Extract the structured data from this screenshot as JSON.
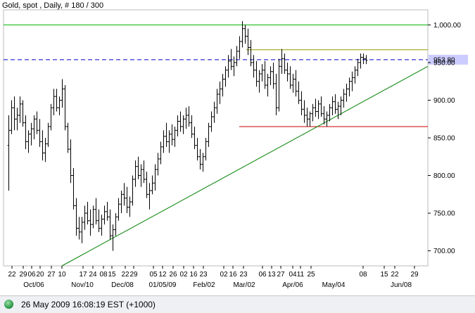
{
  "title": "Gold, spot , Daily, # 180 / 300",
  "status": {
    "text": "26 May 2009 16:08:19  EST (+1000)",
    "dot_color": "#2f9a4b"
  },
  "colors": {
    "bars": "#000000",
    "green_line": "#00b400",
    "blue_dash": "#0000cc",
    "olive_line": "#999900",
    "red_line": "#cc0000",
    "trend_line": "#008000",
    "price_label_bg": "#ccccff",
    "grid": "#dddddd"
  },
  "chart_data": {
    "type": "ohlc",
    "title": "Gold, spot , Daily, # 180 / 300",
    "ylim": [
      680,
      1020
    ],
    "y_ticks": [
      "700.00",
      "750.00",
      "800.00",
      "850.00",
      "900.00",
      "950.00",
      "1,000.00"
    ],
    "x_day_labels": [
      "22",
      "29",
      "06",
      "20",
      "27",
      "10",
      "17",
      "24",
      "08",
      "15",
      "22",
      "29",
      "05",
      "12",
      "26",
      "02",
      "16",
      "23",
      "02",
      "16",
      "23",
      "06",
      "13",
      "27",
      "04",
      "11",
      "25",
      "08",
      "15",
      "22",
      "29"
    ],
    "x_month_labels": [
      "Oct/06",
      "Nov/10",
      "Dec/08",
      "01/05/09",
      "Feb/02",
      "Mar/02",
      "Apr/06",
      "May/04",
      "Jun/08"
    ],
    "horizontal_lines": [
      {
        "value": 1000,
        "color": "#00b400",
        "style": "solid"
      },
      {
        "value": 953.8,
        "color": "#0000cc",
        "style": "dashed",
        "label": "953.80"
      },
      {
        "value": 967,
        "color": "#999900",
        "style": "solid"
      },
      {
        "value": 865,
        "color": "#cc0000",
        "style": "solid"
      }
    ],
    "trend_line": {
      "from": {
        "bar": 0,
        "price": 680
      },
      "to": {
        "bar": 150,
        "price": 945
      }
    },
    "bars": [
      {
        "o": 840,
        "h": 880,
        "l": 780,
        "c": 860
      },
      {
        "o": 860,
        "h": 900,
        "l": 855,
        "c": 890
      },
      {
        "o": 890,
        "h": 905,
        "l": 860,
        "c": 875
      },
      {
        "o": 875,
        "h": 890,
        "l": 860,
        "c": 880
      },
      {
        "o": 880,
        "h": 905,
        "l": 870,
        "c": 895
      },
      {
        "o": 895,
        "h": 900,
        "l": 865,
        "c": 870
      },
      {
        "o": 870,
        "h": 880,
        "l": 835,
        "c": 845
      },
      {
        "o": 845,
        "h": 860,
        "l": 830,
        "c": 855
      },
      {
        "o": 855,
        "h": 870,
        "l": 840,
        "c": 862
      },
      {
        "o": 862,
        "h": 880,
        "l": 848,
        "c": 875
      },
      {
        "o": 875,
        "h": 885,
        "l": 855,
        "c": 860
      },
      {
        "o": 860,
        "h": 875,
        "l": 838,
        "c": 845
      },
      {
        "o": 845,
        "h": 860,
        "l": 820,
        "c": 830
      },
      {
        "o": 830,
        "h": 850,
        "l": 818,
        "c": 842
      },
      {
        "o": 842,
        "h": 870,
        "l": 838,
        "c": 865
      },
      {
        "o": 865,
        "h": 895,
        "l": 860,
        "c": 890
      },
      {
        "o": 890,
        "h": 915,
        "l": 880,
        "c": 905
      },
      {
        "o": 905,
        "h": 915,
        "l": 885,
        "c": 890
      },
      {
        "o": 890,
        "h": 905,
        "l": 880,
        "c": 900
      },
      {
        "o": 900,
        "h": 928,
        "l": 890,
        "c": 915
      },
      {
        "o": 915,
        "h": 920,
        "l": 860,
        "c": 865
      },
      {
        "o": 865,
        "h": 870,
        "l": 830,
        "c": 835
      },
      {
        "o": 835,
        "h": 848,
        "l": 790,
        "c": 800
      },
      {
        "o": 800,
        "h": 810,
        "l": 755,
        "c": 760
      },
      {
        "o": 760,
        "h": 770,
        "l": 720,
        "c": 730
      },
      {
        "o": 730,
        "h": 745,
        "l": 715,
        "c": 725
      },
      {
        "o": 725,
        "h": 745,
        "l": 710,
        "c": 738
      },
      {
        "o": 738,
        "h": 760,
        "l": 728,
        "c": 750
      },
      {
        "o": 750,
        "h": 765,
        "l": 735,
        "c": 740
      },
      {
        "o": 740,
        "h": 755,
        "l": 720,
        "c": 735
      },
      {
        "o": 735,
        "h": 760,
        "l": 730,
        "c": 755
      },
      {
        "o": 755,
        "h": 770,
        "l": 735,
        "c": 740
      },
      {
        "o": 740,
        "h": 755,
        "l": 725,
        "c": 730
      },
      {
        "o": 730,
        "h": 748,
        "l": 720,
        "c": 742
      },
      {
        "o": 742,
        "h": 760,
        "l": 735,
        "c": 752
      },
      {
        "o": 752,
        "h": 765,
        "l": 740,
        "c": 745
      },
      {
        "o": 745,
        "h": 755,
        "l": 715,
        "c": 720
      },
      {
        "o": 720,
        "h": 735,
        "l": 700,
        "c": 728
      },
      {
        "o": 728,
        "h": 750,
        "l": 720,
        "c": 745
      },
      {
        "o": 745,
        "h": 770,
        "l": 740,
        "c": 762
      },
      {
        "o": 762,
        "h": 780,
        "l": 750,
        "c": 775
      },
      {
        "o": 775,
        "h": 790,
        "l": 760,
        "c": 770
      },
      {
        "o": 770,
        "h": 785,
        "l": 750,
        "c": 758
      },
      {
        "o": 758,
        "h": 772,
        "l": 745,
        "c": 765
      },
      {
        "o": 765,
        "h": 800,
        "l": 760,
        "c": 795
      },
      {
        "o": 795,
        "h": 820,
        "l": 785,
        "c": 812
      },
      {
        "o": 812,
        "h": 825,
        "l": 795,
        "c": 800
      },
      {
        "o": 800,
        "h": 815,
        "l": 785,
        "c": 808
      },
      {
        "o": 808,
        "h": 820,
        "l": 790,
        "c": 795
      },
      {
        "o": 795,
        "h": 805,
        "l": 770,
        "c": 775
      },
      {
        "o": 775,
        "h": 790,
        "l": 755,
        "c": 780
      },
      {
        "o": 780,
        "h": 800,
        "l": 775,
        "c": 790
      },
      {
        "o": 790,
        "h": 815,
        "l": 780,
        "c": 808
      },
      {
        "o": 808,
        "h": 830,
        "l": 800,
        "c": 822
      },
      {
        "o": 822,
        "h": 845,
        "l": 815,
        "c": 838
      },
      {
        "o": 838,
        "h": 860,
        "l": 830,
        "c": 852
      },
      {
        "o": 852,
        "h": 870,
        "l": 838,
        "c": 845
      },
      {
        "o": 845,
        "h": 860,
        "l": 830,
        "c": 855
      },
      {
        "o": 855,
        "h": 868,
        "l": 840,
        "c": 848
      },
      {
        "o": 848,
        "h": 865,
        "l": 838,
        "c": 860
      },
      {
        "o": 860,
        "h": 880,
        "l": 852,
        "c": 872
      },
      {
        "o": 872,
        "h": 885,
        "l": 858,
        "c": 865
      },
      {
        "o": 865,
        "h": 880,
        "l": 855,
        "c": 875
      },
      {
        "o": 875,
        "h": 890,
        "l": 862,
        "c": 880
      },
      {
        "o": 880,
        "h": 892,
        "l": 865,
        "c": 870
      },
      {
        "o": 870,
        "h": 880,
        "l": 850,
        "c": 855
      },
      {
        "o": 855,
        "h": 865,
        "l": 835,
        "c": 840
      },
      {
        "o": 840,
        "h": 850,
        "l": 820,
        "c": 825
      },
      {
        "o": 825,
        "h": 835,
        "l": 808,
        "c": 815
      },
      {
        "o": 815,
        "h": 830,
        "l": 805,
        "c": 825
      },
      {
        "o": 825,
        "h": 850,
        "l": 820,
        "c": 845
      },
      {
        "o": 845,
        "h": 870,
        "l": 838,
        "c": 865
      },
      {
        "o": 865,
        "h": 885,
        "l": 858,
        "c": 878
      },
      {
        "o": 878,
        "h": 898,
        "l": 870,
        "c": 890
      },
      {
        "o": 890,
        "h": 915,
        "l": 882,
        "c": 908
      },
      {
        "o": 908,
        "h": 925,
        "l": 895,
        "c": 915
      },
      {
        "o": 915,
        "h": 935,
        "l": 905,
        "c": 928
      },
      {
        "o": 928,
        "h": 945,
        "l": 918,
        "c": 940
      },
      {
        "o": 940,
        "h": 960,
        "l": 930,
        "c": 952
      },
      {
        "o": 952,
        "h": 968,
        "l": 940,
        "c": 945
      },
      {
        "o": 945,
        "h": 958,
        "l": 932,
        "c": 950
      },
      {
        "o": 950,
        "h": 972,
        "l": 945,
        "c": 965
      },
      {
        "o": 965,
        "h": 985,
        "l": 955,
        "c": 978
      },
      {
        "o": 978,
        "h": 1005,
        "l": 970,
        "c": 995
      },
      {
        "o": 995,
        "h": 1000,
        "l": 975,
        "c": 985
      },
      {
        "o": 985,
        "h": 995,
        "l": 960,
        "c": 970
      },
      {
        "o": 970,
        "h": 980,
        "l": 945,
        "c": 950
      },
      {
        "o": 950,
        "h": 960,
        "l": 930,
        "c": 940
      },
      {
        "o": 940,
        "h": 952,
        "l": 918,
        "c": 925
      },
      {
        "o": 925,
        "h": 940,
        "l": 910,
        "c": 935
      },
      {
        "o": 935,
        "h": 948,
        "l": 925,
        "c": 940
      },
      {
        "o": 940,
        "h": 952,
        "l": 915,
        "c": 920
      },
      {
        "o": 920,
        "h": 935,
        "l": 905,
        "c": 930
      },
      {
        "o": 930,
        "h": 945,
        "l": 920,
        "c": 938
      },
      {
        "o": 938,
        "h": 950,
        "l": 915,
        "c": 922
      },
      {
        "o": 922,
        "h": 935,
        "l": 880,
        "c": 890
      },
      {
        "o": 890,
        "h": 955,
        "l": 885,
        "c": 945
      },
      {
        "o": 945,
        "h": 968,
        "l": 935,
        "c": 955
      },
      {
        "o": 955,
        "h": 962,
        "l": 935,
        "c": 940
      },
      {
        "o": 940,
        "h": 950,
        "l": 925,
        "c": 935
      },
      {
        "o": 935,
        "h": 945,
        "l": 915,
        "c": 920
      },
      {
        "o": 920,
        "h": 935,
        "l": 910,
        "c": 928
      },
      {
        "o": 928,
        "h": 940,
        "l": 905,
        "c": 912
      },
      {
        "o": 912,
        "h": 925,
        "l": 895,
        "c": 900
      },
      {
        "o": 900,
        "h": 912,
        "l": 880,
        "c": 888
      },
      {
        "o": 888,
        "h": 900,
        "l": 870,
        "c": 880
      },
      {
        "o": 880,
        "h": 890,
        "l": 865,
        "c": 875
      },
      {
        "o": 875,
        "h": 885,
        "l": 865,
        "c": 882
      },
      {
        "o": 882,
        "h": 895,
        "l": 872,
        "c": 890
      },
      {
        "o": 890,
        "h": 902,
        "l": 878,
        "c": 885
      },
      {
        "o": 885,
        "h": 900,
        "l": 875,
        "c": 895
      },
      {
        "o": 895,
        "h": 905,
        "l": 878,
        "c": 882
      },
      {
        "o": 882,
        "h": 892,
        "l": 868,
        "c": 875
      },
      {
        "o": 875,
        "h": 885,
        "l": 865,
        "c": 880
      },
      {
        "o": 880,
        "h": 895,
        "l": 872,
        "c": 890
      },
      {
        "o": 890,
        "h": 905,
        "l": 880,
        "c": 898
      },
      {
        "o": 898,
        "h": 908,
        "l": 882,
        "c": 888
      },
      {
        "o": 888,
        "h": 898,
        "l": 875,
        "c": 892
      },
      {
        "o": 892,
        "h": 905,
        "l": 880,
        "c": 900
      },
      {
        "o": 900,
        "h": 915,
        "l": 890,
        "c": 908
      },
      {
        "o": 908,
        "h": 922,
        "l": 898,
        "c": 915
      },
      {
        "o": 915,
        "h": 930,
        "l": 905,
        "c": 925
      },
      {
        "o": 925,
        "h": 938,
        "l": 912,
        "c": 930
      },
      {
        "o": 930,
        "h": 945,
        "l": 922,
        "c": 940
      },
      {
        "o": 940,
        "h": 955,
        "l": 932,
        "c": 950
      },
      {
        "o": 950,
        "h": 962,
        "l": 942,
        "c": 957
      },
      {
        "o": 957,
        "h": 962,
        "l": 948,
        "c": 955
      },
      {
        "o": 955,
        "h": 960,
        "l": 948,
        "c": 953
      }
    ]
  }
}
